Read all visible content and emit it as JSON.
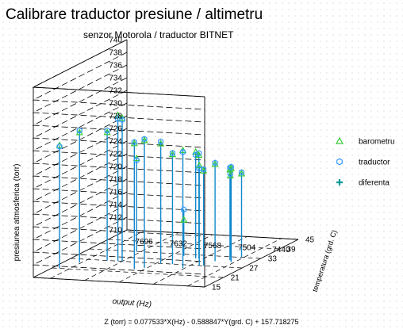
{
  "chart_data": {
    "type": "scatter",
    "title": "Calibrare traductor presiune / altimetru",
    "subtitle": "senzor Motorola / traductor BITNET",
    "xlabel": "output (Hz)",
    "ylabel": "temperatura (grd. C)",
    "zlabel": "presiunea atmosferica (torr)",
    "footer": "Z (torr) = 0.077533*X(Hz) - 0.588847*Y(grd. C) + 157.718275",
    "x_ticks": [
      "7696",
      "7632",
      "7568",
      "7504",
      "7440"
    ],
    "x_range": [
      7728,
      7408
    ],
    "y_ticks": [
      "15",
      "21",
      "27",
      "33",
      "39",
      "45"
    ],
    "y_range": [
      15,
      45
    ],
    "z_ticks": [
      "710",
      "712",
      "714",
      "716",
      "718",
      "720",
      "722",
      "724",
      "726",
      "728",
      "730",
      "732",
      "734",
      "736",
      "738",
      "740"
    ],
    "z_range": [
      710,
      740
    ],
    "legend_position": "right",
    "legend": [
      {
        "name": "barometru",
        "marker": "triangle",
        "color": "#33cc33"
      },
      {
        "name": "traductor",
        "marker": "circle",
        "color": "#3399ff"
      },
      {
        "name": "diferenta",
        "marker": "cross",
        "color": "#009999"
      }
    ],
    "stem_color": "#1188cc",
    "points": [
      {
        "x": 7714,
        "y": 21,
        "barometru": 729.4,
        "traductor": 729.2
      },
      {
        "x": 7700,
        "y": 25,
        "barometru": 730.5,
        "traductor": 730.8
      },
      {
        "x": 7660,
        "y": 27,
        "barometru": 730.2,
        "traductor": 730.5
      },
      {
        "x": 7640,
        "y": 33,
        "barometru": 724.7,
        "traductor": 724.4
      },
      {
        "x": 7640,
        "y": 27,
        "barometru": 733.0,
        "traductor": 732.4
      },
      {
        "x": 7632,
        "y": 27,
        "barometru": 732.6,
        "traductor": 732.3
      },
      {
        "x": 7586,
        "y": 23,
        "barometru": 729.8,
        "traductor": 730.0
      },
      {
        "x": 7573,
        "y": 24,
        "barometru": 730.1,
        "traductor": 730.3
      },
      {
        "x": 7560,
        "y": 27,
        "barometru": 728.9,
        "traductor": 729.2
      },
      {
        "x": 7546,
        "y": 32,
        "barometru": 715.7,
        "traductor": 717.3
      },
      {
        "x": 7538,
        "y": 27,
        "barometru": 727.3,
        "traductor": 727.5
      },
      {
        "x": 7518,
        "y": 31,
        "barometru": 726.8,
        "traductor": 726.3
      },
      {
        "x": 7512,
        "y": 31,
        "barometru": 726.3,
        "traductor": 726.6
      },
      {
        "x": 7507,
        "y": 25,
        "barometru": 728.6,
        "traductor": 728.3
      },
      {
        "x": 7488,
        "y": 27,
        "barometru": 725.8,
        "traductor": 725.3
      },
      {
        "x": 7480,
        "y": 27,
        "barometru": 725.0,
        "traductor": 725.2
      },
      {
        "x": 7476,
        "y": 30,
        "barometru": 725.3,
        "traductor": 725.5
      },
      {
        "x": 7465,
        "y": 33,
        "barometru": 722.8,
        "traductor": 723.1
      },
      {
        "x": 7454,
        "y": 31,
        "barometru": 724.3,
        "traductor": 724.6
      },
      {
        "x": 7446,
        "y": 30,
        "barometru": 724.8,
        "traductor": 725.0
      },
      {
        "x": 7444,
        "y": 33,
        "barometru": 723.2,
        "traductor": 723.4
      }
    ]
  }
}
